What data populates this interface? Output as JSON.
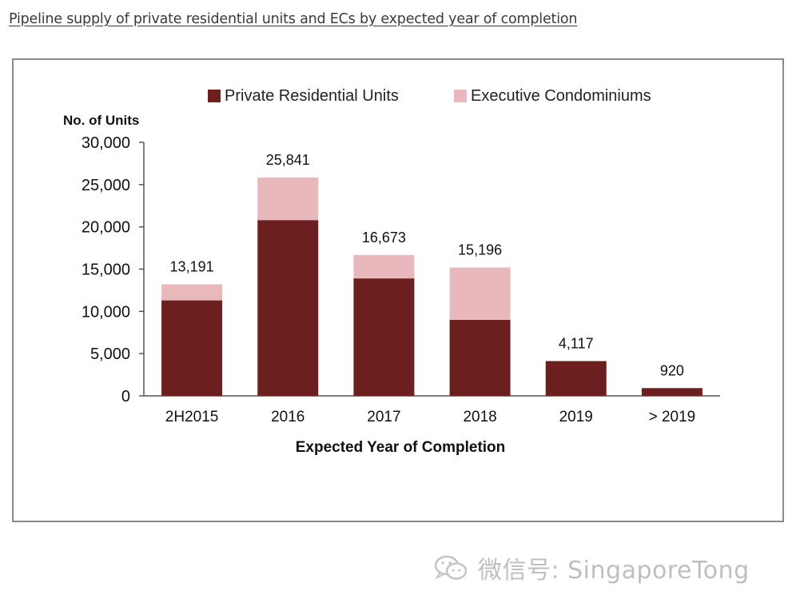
{
  "page": {
    "title": "Pipeline supply of private residential units and ECs by expected year of completion"
  },
  "watermark": {
    "text": "微信号: SingaporeTong",
    "icon": "wechat-icon"
  },
  "colors": {
    "private": "#6b1f1f",
    "ec": "#e8b8bc",
    "axis": "#555555"
  },
  "chart_data": {
    "type": "bar",
    "stacked": true,
    "title": "",
    "xlabel": "Expected Year of Completion",
    "ylabel": "No. of Units",
    "categories": [
      "2H2015",
      "2016",
      "2017",
      "2018",
      "2019",
      "> 2019"
    ],
    "series": [
      {
        "name": "Private Residential Units",
        "values": [
          11300,
          20800,
          13900,
          9000,
          4117,
          920
        ]
      },
      {
        "name": "Executive Condominiums",
        "values": [
          1891,
          5041,
          2773,
          6196,
          0,
          0
        ]
      }
    ],
    "totals": [
      13191,
      25841,
      16673,
      15196,
      4117,
      920
    ],
    "total_labels": [
      "13,191",
      "25,841",
      "16,673",
      "15,196",
      "4,117",
      "920"
    ],
    "ylim": [
      0,
      30000
    ],
    "yticks": [
      0,
      5000,
      10000,
      15000,
      20000,
      25000,
      30000
    ],
    "ytick_labels": [
      "0",
      "5,000",
      "10,000",
      "15,000",
      "20,000",
      "25,000",
      "30,000"
    ],
    "grid": false,
    "legend": "top-center"
  }
}
